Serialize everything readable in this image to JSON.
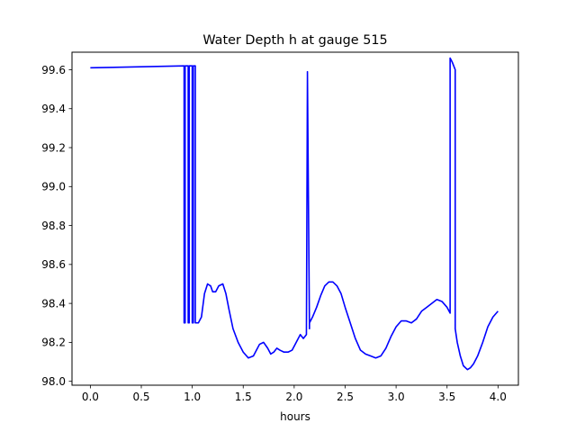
{
  "chart_data": {
    "type": "line",
    "title": "Water Depth h at gauge 515",
    "xlabel": "hours",
    "ylabel": "",
    "xlim": [
      -0.18,
      4.2
    ],
    "ylim": [
      97.98,
      99.69
    ],
    "grid": false,
    "x_ticks": [
      0.0,
      0.5,
      1.0,
      1.5,
      2.0,
      2.5,
      3.0,
      3.5,
      4.0
    ],
    "x_tick_labels": [
      "0.0",
      "0.5",
      "1.0",
      "1.5",
      "2.0",
      "2.5",
      "3.0",
      "3.5",
      "4.0"
    ],
    "y_ticks": [
      98.0,
      98.2,
      98.4,
      98.6,
      98.8,
      99.0,
      99.2,
      99.4,
      99.6
    ],
    "y_tick_labels": [
      "98.0",
      "98.2",
      "98.4",
      "98.6",
      "98.8",
      "99.0",
      "99.2",
      "99.4",
      "99.6"
    ],
    "series": [
      {
        "color": "#0000ff",
        "x": [
          0.0,
          0.5,
          0.92,
          0.92,
          0.93,
          0.93,
          0.96,
          0.96,
          0.97,
          0.97,
          1.0,
          1.0,
          1.01,
          1.01,
          1.03,
          1.03,
          1.04,
          1.06,
          1.09,
          1.12,
          1.15,
          1.18,
          1.2,
          1.23,
          1.26,
          1.3,
          1.33,
          1.36,
          1.4,
          1.45,
          1.5,
          1.55,
          1.6,
          1.63,
          1.66,
          1.7,
          1.74,
          1.77,
          1.8,
          1.83,
          1.86,
          1.9,
          1.94,
          1.98,
          2.02,
          2.06,
          2.09,
          2.12,
          2.13,
          2.13,
          2.15,
          2.15,
          2.18,
          2.22,
          2.26,
          2.3,
          2.34,
          2.38,
          2.42,
          2.46,
          2.5,
          2.55,
          2.6,
          2.65,
          2.7,
          2.75,
          2.8,
          2.85,
          2.9,
          2.95,
          3.0,
          3.05,
          3.1,
          3.15,
          3.2,
          3.25,
          3.3,
          3.35,
          3.4,
          3.45,
          3.5,
          3.53,
          3.53,
          3.55,
          3.58,
          3.58,
          3.6,
          3.63,
          3.66,
          3.7,
          3.73,
          3.76,
          3.8,
          3.85,
          3.9,
          3.95,
          4.0
        ],
        "values": [
          99.61,
          99.615,
          99.62,
          98.3,
          98.3,
          99.62,
          99.62,
          98.3,
          98.3,
          99.62,
          99.62,
          98.3,
          98.3,
          99.62,
          99.62,
          98.3,
          98.3,
          98.3,
          98.33,
          98.45,
          98.5,
          98.49,
          98.46,
          98.46,
          98.49,
          98.5,
          98.45,
          98.37,
          98.27,
          98.2,
          98.15,
          98.12,
          98.13,
          98.16,
          98.19,
          98.2,
          98.17,
          98.14,
          98.15,
          98.17,
          98.16,
          98.15,
          98.15,
          98.16,
          98.2,
          98.24,
          98.22,
          98.24,
          99.57,
          99.59,
          98.27,
          98.3,
          98.33,
          98.38,
          98.44,
          98.49,
          98.51,
          98.51,
          98.49,
          98.45,
          98.38,
          98.3,
          98.22,
          98.16,
          98.14,
          98.13,
          98.12,
          98.13,
          98.17,
          98.23,
          98.28,
          98.31,
          98.31,
          98.3,
          98.32,
          98.36,
          98.38,
          98.4,
          98.42,
          98.41,
          98.38,
          98.35,
          99.66,
          99.64,
          99.6,
          98.27,
          98.2,
          98.13,
          98.08,
          98.06,
          98.07,
          98.09,
          98.13,
          98.2,
          98.28,
          98.33,
          98.36
        ]
      }
    ]
  }
}
